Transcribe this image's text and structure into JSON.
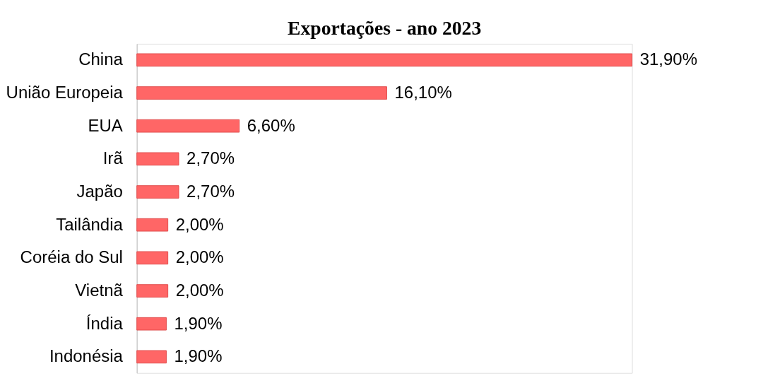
{
  "chart_data": {
    "type": "bar",
    "orientation": "horizontal",
    "title": "Exportações - ano 2023",
    "categories": [
      "China",
      "União Europeia",
      "EUA",
      "Irã",
      "Japão",
      "Tailândia",
      "Coréia do Sul",
      "Vietnã",
      "Índia",
      "Indonésia"
    ],
    "values": [
      31.9,
      16.1,
      6.6,
      2.7,
      2.7,
      2.0,
      2.0,
      2.0,
      1.9,
      1.9
    ],
    "value_labels": [
      "31,90%",
      "16,10%",
      "6,60%",
      "2,70%",
      "2,70%",
      "2,00%",
      "2,00%",
      "2,00%",
      "1,90%",
      "1,90%"
    ],
    "color": "#ff6666"
  }
}
